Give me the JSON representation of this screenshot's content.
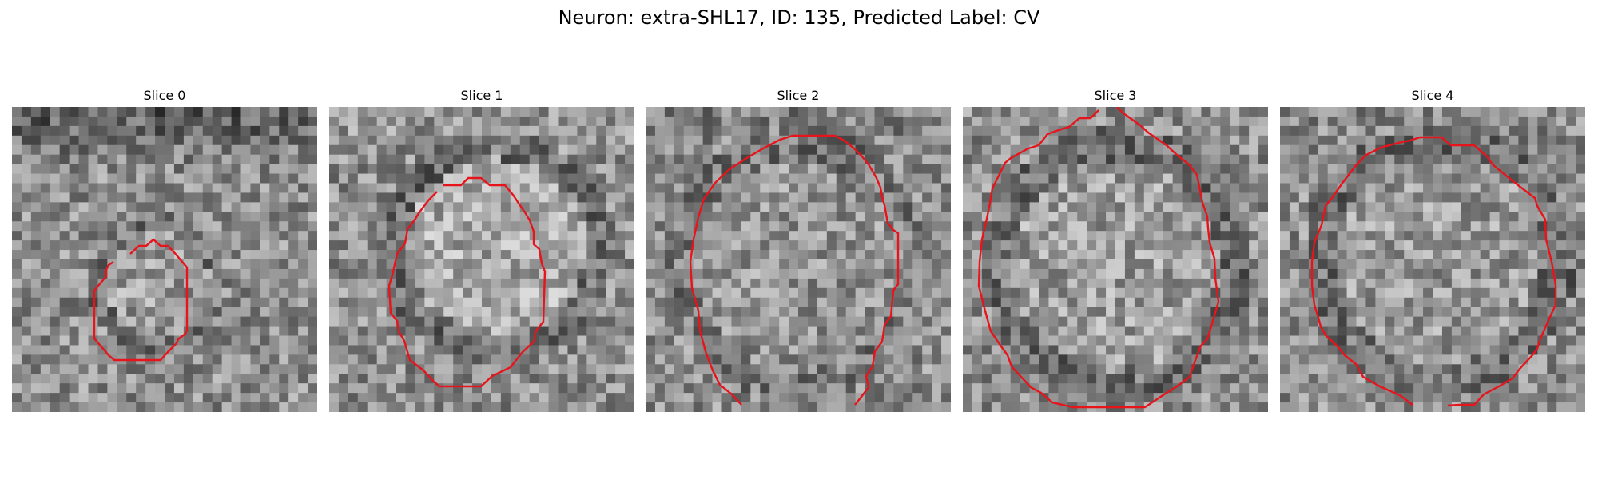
{
  "figure": {
    "title": "Neuron: extra-SHL17, ID: 135, Predicted Label: CV"
  },
  "contour_color": "#e8141c",
  "slices": [
    {
      "label": "Slice 0"
    },
    {
      "label": "Slice 1"
    },
    {
      "label": "Slice 2"
    },
    {
      "label": "Slice 3"
    },
    {
      "label": "Slice 4"
    }
  ]
}
